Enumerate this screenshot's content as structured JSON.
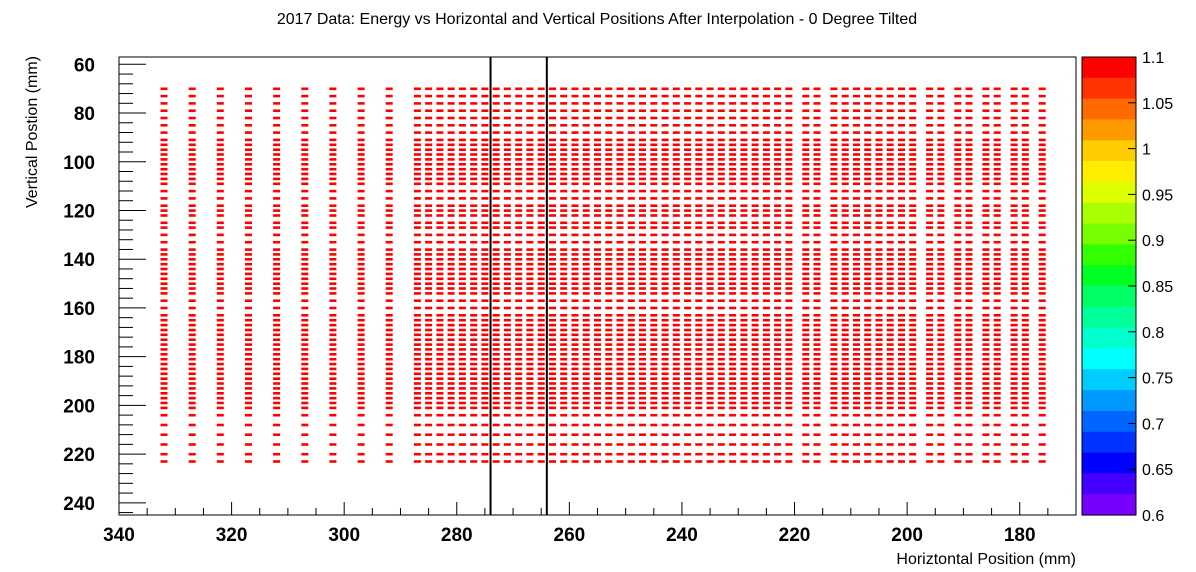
{
  "chart_data": {
    "type": "heatmap",
    "title": "2017 Data: Energy vs Horizontal and Vertical Positions After Interpolation - 0 Degree Tilted",
    "xlabel": "Horiztontal Position (mm)",
    "ylabel": "Vertical Postion (mm)",
    "xlim": [
      340,
      170
    ],
    "ylim": [
      245,
      57
    ],
    "x_reversed": true,
    "y_reversed": true,
    "x_ticks": [
      340,
      320,
      300,
      280,
      260,
      240,
      220,
      200,
      180
    ],
    "y_ticks": [
      60,
      80,
      100,
      120,
      140,
      160,
      180,
      200,
      220,
      240
    ],
    "zlim": [
      0.6,
      1.1
    ],
    "colorbar_labels": [
      "1.1",
      "1.05",
      "1",
      "0.95",
      "0.9",
      "0.85",
      "0.8",
      "0.75",
      "0.7",
      "0.65",
      "0.6"
    ],
    "colorbar_colors": [
      "#ff0000",
      "#ff3300",
      "#ff6a00",
      "#ff9900",
      "#ffcc00",
      "#ffee00",
      "#ddff00",
      "#aaff00",
      "#77ff00",
      "#33ff00",
      "#00ff22",
      "#00ff66",
      "#00ff99",
      "#00ffcc",
      "#00ffff",
      "#00ccff",
      "#0099ff",
      "#0066ff",
      "#0033ff",
      "#0000ff",
      "#4400ff",
      "#7700ff"
    ],
    "cell_color": "#ff0000",
    "vertical_lines_x": [
      274,
      264
    ],
    "grid": false,
    "legend": "colorbar-right",
    "cell_value": 1.1,
    "columns_x": [
      332,
      327,
      322,
      317,
      312,
      307,
      302,
      297,
      292,
      287,
      285,
      283,
      281,
      279,
      277,
      275,
      273,
      271,
      269,
      267,
      265,
      263,
      261,
      259,
      257,
      255,
      253,
      251,
      249,
      247,
      245,
      243,
      241,
      239,
      237,
      235,
      233,
      231,
      229,
      227,
      225,
      223,
      221,
      218,
      216,
      213,
      211,
      209,
      207,
      205,
      203,
      201,
      199,
      196,
      194,
      191,
      189,
      186,
      184,
      181,
      179,
      176
    ],
    "rows_y": [
      70,
      73,
      76,
      79,
      82,
      85,
      88,
      91,
      93,
      95,
      97,
      99,
      101,
      103,
      105,
      107,
      109,
      112,
      115,
      118,
      120,
      122,
      125,
      127,
      130,
      133,
      136,
      138,
      140,
      142,
      144,
      146,
      148,
      150,
      152,
      154,
      157,
      160,
      163,
      165,
      167,
      169,
      171,
      173,
      175,
      177,
      179,
      181,
      183,
      185,
      187,
      189,
      191,
      193,
      195,
      197,
      199,
      201,
      204,
      208,
      212,
      216,
      220,
      223
    ]
  }
}
